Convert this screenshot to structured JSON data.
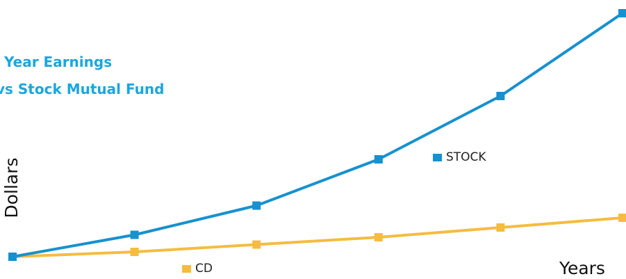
{
  "chart_data": {
    "type": "line",
    "title_lines": [
      "Year Earnings",
      "vs Stock Mutual Fund"
    ],
    "xlabel": "Years",
    "ylabel": "Dollars",
    "x": [
      0,
      1,
      2,
      3,
      4,
      5
    ],
    "ylim": [
      0,
      100
    ],
    "grid": false,
    "series": [
      {
        "name": "STOCK",
        "color": "#1791cf",
        "values": [
          0,
          9,
          21,
          40,
          66,
          100
        ]
      },
      {
        "name": "CD",
        "color": "#f5bc40",
        "values": [
          0,
          2,
          5,
          8,
          12,
          16
        ]
      }
    ]
  }
}
